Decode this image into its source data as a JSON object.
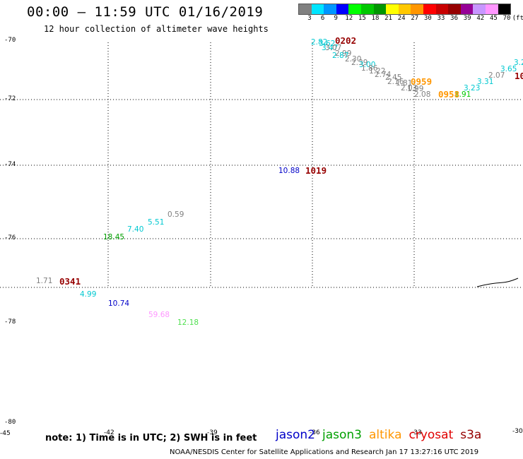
{
  "title": "00:00 – 11:59 UTC 01/16/2019",
  "subtitle": "12 hour collection of altimeter wave heights",
  "legend": {
    "colors": [
      "#808080",
      "#00e5ff",
      "#0096ff",
      "#0000ff",
      "#00ff00",
      "#00c800",
      "#009600",
      "#ffff00",
      "#ffc800",
      "#ff9600",
      "#ff0000",
      "#c80000",
      "#960000",
      "#960096",
      "#c896ff",
      "#ff96ff",
      "#000000"
    ],
    "labels": [
      "3",
      "6",
      "9",
      "12",
      "15",
      "18",
      "21",
      "24",
      "27",
      "30",
      "33",
      "36",
      "39",
      "42",
      "45",
      "70",
      "(ft)"
    ]
  },
  "lat_labels": [
    "-70",
    "-72",
    "-74",
    "-76",
    "-78",
    "-80"
  ],
  "corner_labels": {
    "left": "-45",
    "bottom_a": "-42",
    "bottom_b": "-39",
    "bottom_c": "-36",
    "bottom_d": "-33",
    "bottom_e": "-30"
  },
  "values": [
    {
      "text": "2.82",
      "color": "#00c8d0"
    },
    {
      "text": "3.62",
      "color": "#00c8d0"
    },
    {
      "text": "3.47",
      "color": "#00c8d0"
    },
    {
      "text": "3.07",
      "color": "#808080"
    },
    {
      "text": "2.99",
      "color": "#808080"
    },
    {
      "text": "2.87",
      "color": "#00c8d0"
    },
    {
      "text": "2.30",
      "color": "#808080"
    },
    {
      "text": "2.39",
      "color": "#808080"
    },
    {
      "text": "3.00",
      "color": "#00c8d0"
    },
    {
      "text": "1.86",
      "color": "#808080"
    },
    {
      "text": "1.22",
      "color": "#808080"
    },
    {
      "text": "2.74",
      "color": "#808080"
    },
    {
      "text": "2.45",
      "color": "#808080"
    },
    {
      "text": "2.16",
      "color": "#808080"
    },
    {
      "text": "1.81",
      "color": "#808080"
    },
    {
      "text": "2.03",
      "color": "#808080"
    },
    {
      "text": "1.99",
      "color": "#808080"
    },
    {
      "text": "2.08",
      "color": "#808080"
    },
    {
      "text": "3.23",
      "color": "#00c8d0"
    },
    {
      "text": "3.31",
      "color": "#00c8d0"
    },
    {
      "text": "2.07",
      "color": "#808080"
    },
    {
      "text": "3.65",
      "color": "#00c8d0"
    },
    {
      "text": "3.2",
      "color": "#00c8d0"
    },
    {
      "text": "1.91",
      "color": "#00c800"
    },
    {
      "text": "10.88",
      "color": "#0000c8"
    },
    {
      "text": "0.59",
      "color": "#808080"
    },
    {
      "text": "5.51",
      "color": "#00c8d0"
    },
    {
      "text": "7.40",
      "color": "#00c8d0"
    },
    {
      "text": "18.45",
      "color": "#00a000"
    },
    {
      "text": "1.71",
      "color": "#808080"
    },
    {
      "text": "4.99",
      "color": "#00c8d0"
    },
    {
      "text": "10.74",
      "color": "#0000c8"
    },
    {
      "text": "59.68",
      "color": "#ff96ff"
    },
    {
      "text": "12.18",
      "color": "#50e050"
    }
  ],
  "times": [
    {
      "text": "0202",
      "color": "#960000"
    },
    {
      "text": "0959",
      "color": "#ff9600"
    },
    {
      "text": "0958",
      "color": "#ff9600"
    },
    {
      "text": "1019",
      "color": "#960000"
    },
    {
      "text": "0341",
      "color": "#960000"
    },
    {
      "text": "10",
      "color": "#960000"
    }
  ],
  "note": "note: 1) Time is in UTC; 2) SWH is in feet",
  "satellites": [
    {
      "name": "jason2",
      "color": "#0000c8"
    },
    {
      "name": "jason3",
      "color": "#00a000"
    },
    {
      "name": "altika",
      "color": "#ff9600"
    },
    {
      "name": "cryosat",
      "color": "#e00000"
    },
    {
      "name": "s3a",
      "color": "#960000"
    }
  ],
  "credit": "NOAA/NESDIS Center for Satellite Applications and Research    Jan 17 13:27:16 UTC 2019"
}
